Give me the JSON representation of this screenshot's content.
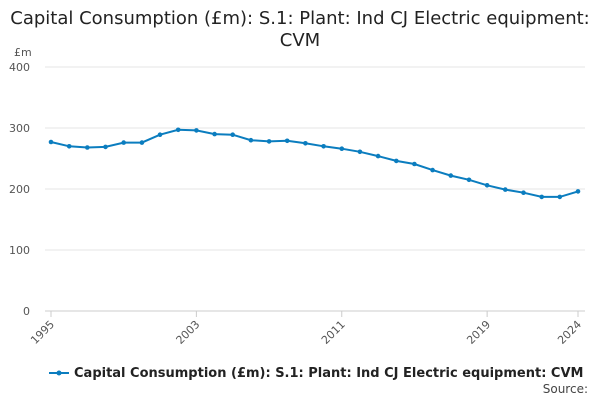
{
  "chart_data": {
    "type": "line",
    "title": "Capital Consumption (£m): S.1: Plant: Ind CJ Electric equipment: CVM",
    "ylabel": "£m",
    "xlabel": "",
    "ylim": [
      0,
      400
    ],
    "y_ticks": [
      0,
      100,
      200,
      300,
      400
    ],
    "x_tick_labels": [
      "1995",
      "2003",
      "2011",
      "2019",
      "2024"
    ],
    "x": [
      1995,
      1996,
      1997,
      1998,
      1999,
      2000,
      2001,
      2002,
      2003,
      2004,
      2005,
      2006,
      2007,
      2008,
      2009,
      2010,
      2011,
      2012,
      2013,
      2014,
      2015,
      2016,
      2017,
      2018,
      2019,
      2020,
      2021,
      2022,
      2023,
      2024
    ],
    "series": [
      {
        "name": "Capital Consumption (£m): S.1: Plant: Ind CJ Electric equipment: CVM",
        "color": "#0b7dbf",
        "values": [
          277,
          270,
          268,
          269,
          276,
          276,
          289,
          297,
          296,
          290,
          289,
          280,
          278,
          279,
          275,
          270,
          266,
          261,
          254,
          246,
          241,
          231,
          222,
          215,
          206,
          199,
          194,
          187,
          187,
          196
        ]
      }
    ],
    "grid": true,
    "legend_position": "bottom"
  },
  "source_label": "Source:"
}
